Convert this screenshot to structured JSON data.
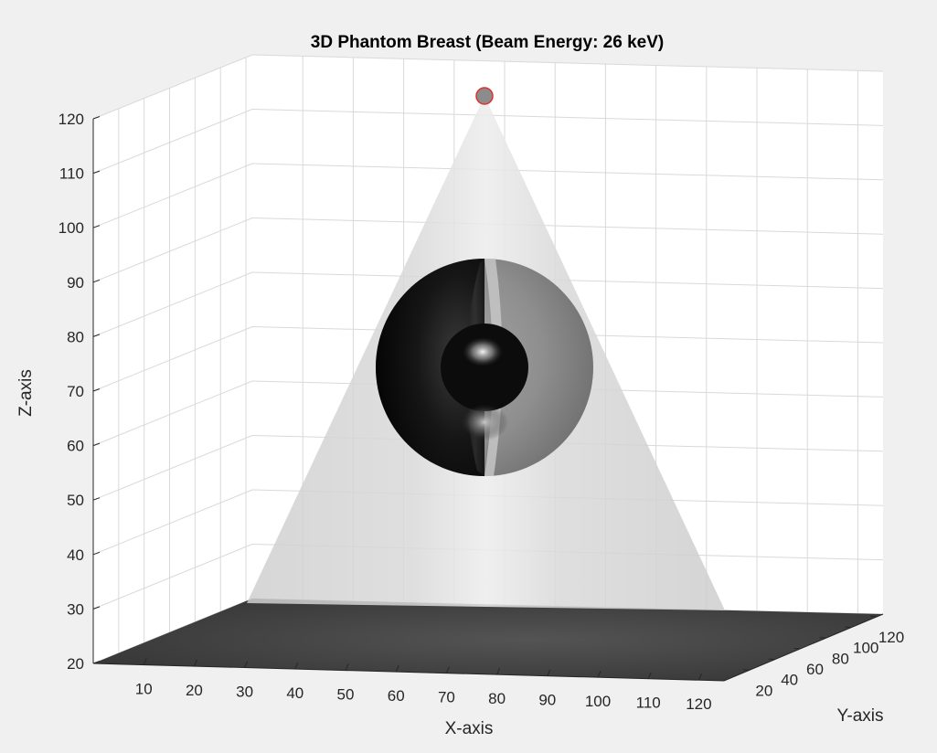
{
  "chart_data": {
    "type": "3d-surface",
    "title": "3D Phantom Breast (Beam Energy: 26 keV)",
    "xlabel": "X-axis",
    "ylabel": "Y-axis",
    "zlabel": "Z-axis",
    "xticks": [
      10,
      20,
      30,
      40,
      50,
      60,
      70,
      80,
      90,
      100,
      110,
      120
    ],
    "yticks": [
      20,
      40,
      60,
      80,
      100,
      120
    ],
    "zticks": [
      20,
      30,
      40,
      50,
      60,
      70,
      80,
      90,
      100,
      110,
      120
    ],
    "xlim": [
      0,
      125
    ],
    "ylim": [
      0,
      125
    ],
    "zlim": [
      20,
      120
    ],
    "grid": true,
    "source_point": {
      "x": 62.5,
      "y": 62.5,
      "z": 124
    },
    "beam_cone": {
      "apex_z": 124,
      "base_z": 30
    },
    "detector_plane_z": 20,
    "outer_sphere": {
      "center": [
        62.5,
        62.5,
        74
      ],
      "radius": 20
    },
    "inner_sphere": {
      "center": [
        62.5,
        62.5,
        74
      ],
      "radius": 8
    },
    "colors": {
      "background": "#f0f0f0",
      "plot_area": "#ffffff",
      "grid": "#d9d9d9",
      "cone": "#d2d2d2",
      "detector": "#404040",
      "source_fill": "#8c8c8c",
      "source_edge": "#e03030",
      "sphere_dark": "#0d0d0d",
      "sphere_gray": "#8a8a8a"
    }
  }
}
